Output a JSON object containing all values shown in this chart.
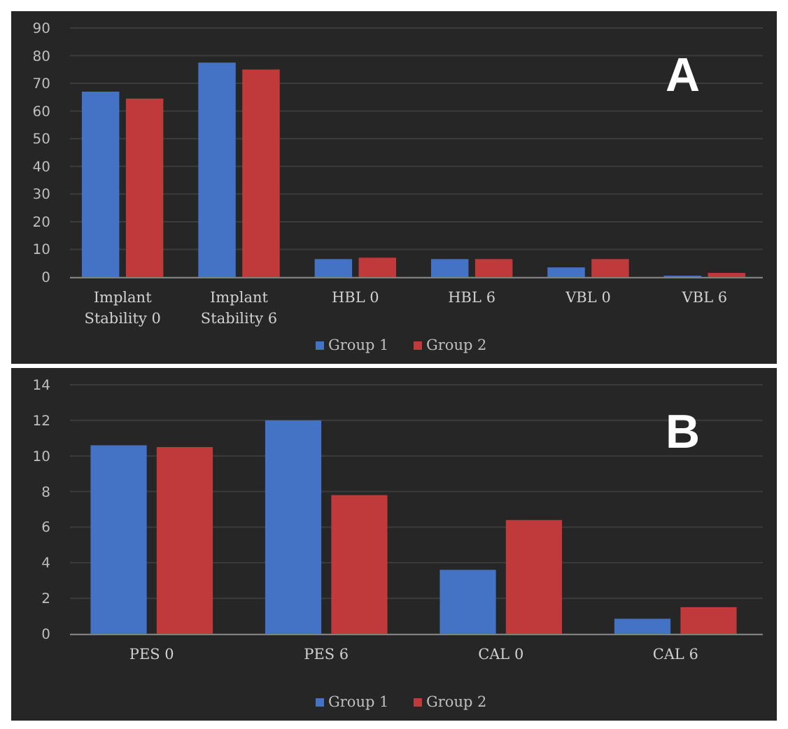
{
  "chart_data": [
    {
      "type": "bar",
      "title": "A",
      "categories": [
        "Implant\nStability 0",
        "Implant\nStability 6",
        "HBL 0",
        "HBL 6",
        "VBL 0",
        "VBL 6"
      ],
      "ylim": [
        0,
        90
      ],
      "yticks": [
        0,
        10,
        20,
        30,
        40,
        50,
        60,
        70,
        80,
        90
      ],
      "grid": "y",
      "legend": "bottom",
      "series": [
        {
          "name": "Group 1",
          "color": "#4472c4",
          "values": [
            67,
            77.5,
            6.5,
            6.5,
            3.5,
            0.5
          ]
        },
        {
          "name": "Group 2",
          "color": "#c0393b",
          "values": [
            64.5,
            75,
            7,
            6.5,
            6.5,
            1.5
          ]
        }
      ]
    },
    {
      "type": "bar",
      "title": "B",
      "categories": [
        "PES 0",
        "PES 6",
        "CAL 0",
        "CAL 6"
      ],
      "ylim": [
        0,
        14
      ],
      "yticks": [
        0,
        2,
        4,
        6,
        8,
        10,
        12,
        14
      ],
      "grid": "y",
      "legend": "bottom",
      "series": [
        {
          "name": "Group 1",
          "color": "#4472c4",
          "values": [
            10.6,
            12,
            3.6,
            0.85
          ]
        },
        {
          "name": "Group 2",
          "color": "#c0393b",
          "values": [
            10.5,
            7.8,
            6.4,
            1.5
          ]
        }
      ]
    }
  ]
}
